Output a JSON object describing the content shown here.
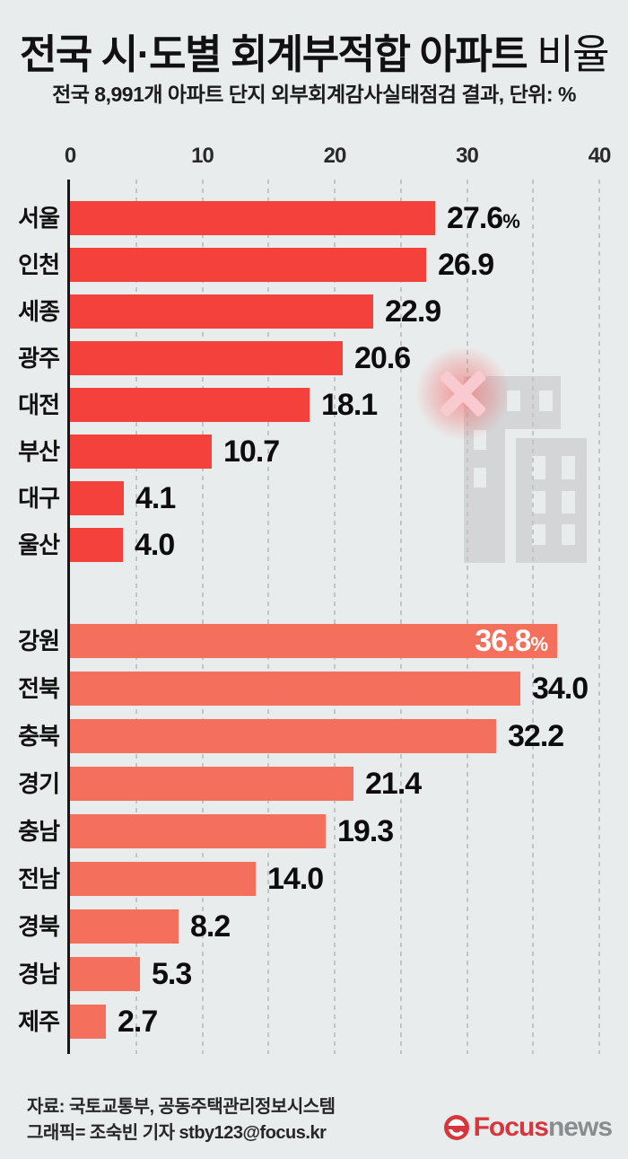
{
  "title": {
    "part1": "전국 시·도별",
    "part2": "회계부적합 아파트",
    "part3": "비율"
  },
  "subtitle": "전국 8,991개 아파트 단지 외부회계감사실태점검 결과, 단위: %",
  "chart_data": {
    "type": "bar",
    "orientation": "horizontal",
    "unit": "%",
    "xlim": [
      0,
      40
    ],
    "ticks": [
      0,
      10,
      20,
      30,
      40
    ],
    "gridline_step": 5,
    "grid": true,
    "series": [
      {
        "name": "cities",
        "color": "#f4413c",
        "items": [
          {
            "region": "서울",
            "value": 27.6,
            "label": "27.6",
            "suffix": "%"
          },
          {
            "region": "인천",
            "value": 26.9,
            "label": "26.9"
          },
          {
            "region": "세종",
            "value": 22.9,
            "label": "22.9"
          },
          {
            "region": "광주",
            "value": 20.6,
            "label": "20.6"
          },
          {
            "region": "대전",
            "value": 18.1,
            "label": "18.1"
          },
          {
            "region": "부산",
            "value": 10.7,
            "label": "10.7"
          },
          {
            "region": "대구",
            "value": 4.1,
            "label": "4.1"
          },
          {
            "region": "울산",
            "value": 4.0,
            "label": "4.0"
          }
        ]
      },
      {
        "name": "provinces",
        "color": "#f4705c",
        "items": [
          {
            "region": "강원",
            "value": 36.8,
            "label": "36.8",
            "suffix": "%",
            "label_inside": true
          },
          {
            "region": "전북",
            "value": 34.0,
            "label": "34.0"
          },
          {
            "region": "충북",
            "value": 32.2,
            "label": "32.2"
          },
          {
            "region": "경기",
            "value": 21.4,
            "label": "21.4"
          },
          {
            "region": "충남",
            "value": 19.3,
            "label": "19.3"
          },
          {
            "region": "전남",
            "value": 14.0,
            "label": "14.0"
          },
          {
            "region": "경북",
            "value": 8.2,
            "label": "8.2"
          },
          {
            "region": "경남",
            "value": 5.3,
            "label": "5.3"
          },
          {
            "region": "제주",
            "value": 2.7,
            "label": "2.7"
          }
        ]
      }
    ]
  },
  "icons": {
    "building": "apartment-buildings-icon",
    "x_badge": "x-mark-badge-icon",
    "logo_icon": "focus-news-e-icon"
  },
  "footer": {
    "source": "자료: 국토교통부, 공동주택관리정보시스템",
    "credit": "그래픽= 조숙빈 기자 stby123@focus.kr"
  },
  "logo": {
    "focus": "Focus",
    "news": "news"
  }
}
